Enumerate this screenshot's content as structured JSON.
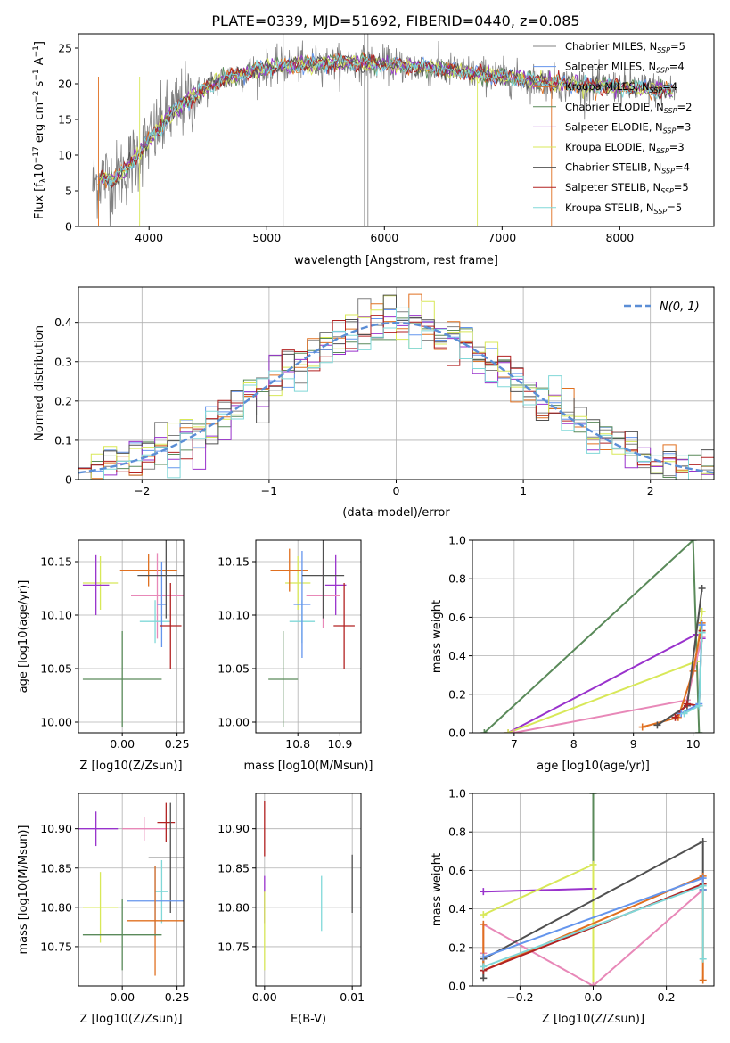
{
  "figure_title": "PLATE=0339, MJD=51692, FIBERID=0440, z=0.085",
  "colors": {
    "Chabrier MILES": "#6495ED",
    "Salpeter MILES": "#FF8C00",
    "Kroupa MILES": "#E07020",
    "Chabrier ELODIE": "#5A8A5A",
    "Salpeter ELODIE": "#9932CC",
    "Kroupa ELODIE": "#D8E858",
    "Chabrier STELIB": "#505050",
    "Salpeter STELIB": "#B22222",
    "Kroupa STELIB": "#80D8D8",
    "data": "#808080",
    "pink": "#E888B8",
    "normal": "#5B8ED6"
  },
  "chart_data": [
    {
      "id": "spectrum",
      "type": "line",
      "title": "PLATE=0339, MJD=51692, FIBERID=0440, z=0.085",
      "xlabel": "wavelength [Angstrom, rest frame]",
      "ylabel": "Flux [f_λ10^-17 erg cm^-2 s^-1 A^-1]",
      "xlim": [
        3400,
        8800
      ],
      "ylim": [
        0,
        27
      ],
      "xticks": [
        4000,
        5000,
        6000,
        7000,
        8000
      ],
      "yticks": [
        0,
        5,
        10,
        15,
        20,
        25
      ],
      "grid": false,
      "legend_position": "right",
      "legend": [
        {
          "name": "Chabrier MILES",
          "nssp": "5",
          "color": "#808080"
        },
        {
          "name": "Salpeter MILES",
          "nssp": "4",
          "color": "#6495ED"
        },
        {
          "name": "Kroupa MILES",
          "nssp": "4",
          "color": "#E07020"
        },
        {
          "name": "Chabrier ELODIE",
          "nssp": "2",
          "color": "#5A8A5A"
        },
        {
          "name": "Salpeter ELODIE",
          "nssp": "3",
          "color": "#9932CC"
        },
        {
          "name": "Kroupa ELODIE",
          "nssp": "3",
          "color": "#D8E858"
        },
        {
          "name": "Chabrier STELIB",
          "nssp": "4",
          "color": "#505050"
        },
        {
          "name": "Salpeter STELIB",
          "nssp": "5",
          "color": "#B22222"
        },
        {
          "name": "Kroupa STELIB",
          "nssp": "5",
          "color": "#80D8D8"
        }
      ],
      "continuum": {
        "x": [
          3500,
          3600,
          3700,
          3800,
          3900,
          4000,
          4100,
          4200,
          4300,
          4400,
          4500,
          4600,
          4800,
          5000,
          5200,
          5500,
          6000,
          6500,
          7000,
          7500,
          8000,
          8500
        ],
        "y": [
          5.5,
          7,
          6.5,
          8,
          10,
          12,
          14,
          16,
          17.5,
          18.5,
          19.5,
          20.5,
          21.5,
          22.2,
          22.6,
          23,
          22.8,
          22,
          21,
          20,
          19.5,
          19
        ]
      }
    },
    {
      "id": "residual-hist",
      "type": "line",
      "xlabel": "(data-model)/error",
      "ylabel": "Normed distribution",
      "xlim": [
        -2.5,
        2.5
      ],
      "ylim": [
        0,
        0.49
      ],
      "xticks": [
        -2,
        -1,
        0,
        1,
        2
      ],
      "yticks": [
        0.0,
        0.1,
        0.2,
        0.3,
        0.4
      ],
      "grid": true,
      "legend": "N(0,1)",
      "legend_position": "top-right"
    },
    {
      "id": "age-vs-Z",
      "type": "scatter",
      "xlabel": "Z [log10(Z/Zsun)]",
      "ylabel": "age [log10(age/yr)]",
      "xlim": [
        -0.2,
        0.28
      ],
      "ylim": [
        9.99,
        10.17
      ],
      "xticks": [
        0.0,
        0.25
      ],
      "xticklabels": [
        "0.00",
        "0.25"
      ],
      "yticks": [
        10.0,
        10.05,
        10.1,
        10.15
      ],
      "yticklabels": [
        "10.00",
        "10.05",
        "10.10",
        "10.15"
      ],
      "grid": true,
      "points": [
        {
          "x": 0.0,
          "y": 10.04,
          "xerr": 0.18,
          "yerr": 0.045,
          "color": "#5A8A5A"
        },
        {
          "x": -0.1,
          "y": 10.13,
          "xerr": 0.08,
          "yerr": 0.025,
          "color": "#D8E858"
        },
        {
          "x": -0.12,
          "y": 10.128,
          "xerr": 0.06,
          "yerr": 0.028,
          "color": "#9932CC"
        },
        {
          "x": 0.12,
          "y": 10.142,
          "xerr": 0.13,
          "yerr": 0.015,
          "color": "#E07020"
        },
        {
          "x": 0.16,
          "y": 10.118,
          "xerr": 0.12,
          "yerr": 0.04,
          "color": "#E888B8"
        },
        {
          "x": 0.15,
          "y": 10.094,
          "xerr": 0.07,
          "yerr": 0.02,
          "color": "#80D8D8"
        },
        {
          "x": 0.18,
          "y": 10.11,
          "xerr": 0.02,
          "yerr": 0.04,
          "color": "#6495ED"
        },
        {
          "x": 0.2,
          "y": 10.137,
          "xerr": 0.13,
          "yerr": 0.04,
          "color": "#505050"
        },
        {
          "x": 0.22,
          "y": 10.09,
          "xerr": 0.05,
          "yerr": 0.04,
          "color": "#B22222"
        }
      ]
    },
    {
      "id": "age-vs-mass",
      "type": "scatter",
      "xlabel": "mass [log10(M/Msun)]",
      "ylabel": "",
      "xlim": [
        10.7,
        10.95
      ],
      "ylim": [
        9.99,
        10.17
      ],
      "xticks": [
        10.8,
        10.9
      ],
      "xticklabels": [
        "10.8",
        "10.9"
      ],
      "yticks": [
        10.0,
        10.05,
        10.1,
        10.15
      ],
      "yticklabels": [
        "10.00",
        "10.05",
        "10.10",
        "10.15"
      ],
      "grid": true,
      "points": [
        {
          "x": 10.765,
          "y": 10.04,
          "xerr": 0.035,
          "yerr": 0.045,
          "color": "#5A8A5A"
        },
        {
          "x": 10.8,
          "y": 10.13,
          "xerr": 0.03,
          "yerr": 0.025,
          "color": "#D8E858"
        },
        {
          "x": 10.89,
          "y": 10.128,
          "xerr": 0.025,
          "yerr": 0.028,
          "color": "#9932CC"
        },
        {
          "x": 10.78,
          "y": 10.142,
          "xerr": 0.045,
          "yerr": 0.02,
          "color": "#E07020"
        },
        {
          "x": 10.86,
          "y": 10.118,
          "xerr": 0.04,
          "yerr": 0.03,
          "color": "#E888B8"
        },
        {
          "x": 10.81,
          "y": 10.094,
          "xerr": 0.03,
          "yerr": 0.02,
          "color": "#80D8D8"
        },
        {
          "x": 10.81,
          "y": 10.11,
          "xerr": 0.02,
          "yerr": 0.05,
          "color": "#6495ED"
        },
        {
          "x": 10.86,
          "y": 10.137,
          "xerr": 0.05,
          "yerr": 0.04,
          "color": "#505050"
        },
        {
          "x": 10.91,
          "y": 10.09,
          "xerr": 0.025,
          "yerr": 0.04,
          "color": "#B22222"
        }
      ]
    },
    {
      "id": "weight-vs-age",
      "type": "line",
      "xlabel": "age [log10(age/yr)]",
      "ylabel": "mass weight",
      "xlim": [
        6.3,
        10.35
      ],
      "ylim": [
        0.0,
        1.0
      ],
      "xticks": [
        7,
        8,
        9,
        10
      ],
      "yticks": [
        0.0,
        0.2,
        0.4,
        0.6,
        0.8,
        1.0
      ],
      "yticklabels": [
        "0.0",
        "0.2",
        "0.4",
        "0.6",
        "0.8",
        "1.0"
      ],
      "grid": true,
      "series": [
        {
          "color": "#5A8A5A",
          "x": [
            6.5,
            10.0,
            10.1
          ],
          "y": [
            0.0,
            1.0,
            0.0
          ]
        },
        {
          "color": "#9932CC",
          "x": [
            6.9,
            10.05,
            10.15
          ],
          "y": [
            0.0,
            0.51,
            0.49
          ]
        },
        {
          "color": "#D8E858",
          "x": [
            6.9,
            10.05,
            10.15
          ],
          "y": [
            0.0,
            0.37,
            0.63
          ]
        },
        {
          "color": "#E888B8",
          "x": [
            7.0,
            9.9,
            10.15
          ],
          "y": [
            0.0,
            0.17,
            0.5
          ]
        },
        {
          "color": "#E07020",
          "x": [
            9.15,
            9.75,
            10.0,
            10.15
          ],
          "y": [
            0.03,
            0.08,
            0.32,
            0.57
          ]
        },
        {
          "color": "#505050",
          "x": [
            9.4,
            9.9,
            10.15
          ],
          "y": [
            0.04,
            0.14,
            0.75
          ]
        },
        {
          "color": "#B22222",
          "x": [
            9.7,
            9.9,
            10.1,
            10.15
          ],
          "y": [
            0.08,
            0.15,
            0.14,
            0.53
          ]
        },
        {
          "color": "#6495ED",
          "x": [
            9.8,
            10.1,
            10.15
          ],
          "y": [
            0.1,
            0.15,
            0.56
          ]
        },
        {
          "color": "#80D8D8",
          "x": [
            9.85,
            10.1,
            10.15
          ],
          "y": [
            0.1,
            0.14,
            0.52
          ]
        }
      ]
    },
    {
      "id": "mass-vs-Z",
      "type": "scatter",
      "xlabel": "Z [log10(Z/Zsun)]",
      "ylabel": "mass [log10(M/Msun)]",
      "xlim": [
        -0.2,
        0.28
      ],
      "ylim": [
        10.7,
        10.945
      ],
      "xticks": [
        0.0,
        0.25
      ],
      "xticklabels": [
        "0.00",
        "0.25"
      ],
      "yticks": [
        10.75,
        10.8,
        10.85,
        10.9
      ],
      "yticklabels": [
        "10.75",
        "10.80",
        "10.85",
        "10.90"
      ],
      "grid": true,
      "points": [
        {
          "x": -0.12,
          "y": 10.9,
          "xerr": 0.1,
          "yerr": 0.022,
          "color": "#9932CC"
        },
        {
          "x": 0.1,
          "y": 10.9,
          "xerr": 0.1,
          "yerr": 0.015,
          "color": "#E888B8"
        },
        {
          "x": 0.2,
          "y": 10.908,
          "xerr": 0.04,
          "yerr": 0.025,
          "color": "#B22222"
        },
        {
          "x": 0.22,
          "y": 10.863,
          "xerr": 0.1,
          "yerr": 0.07,
          "color": "#505050"
        },
        {
          "x": 0.18,
          "y": 10.82,
          "xerr": 0.03,
          "yerr": 0.04,
          "color": "#80D8D8"
        },
        {
          "x": 0.15,
          "y": 10.808,
          "xerr": 0.13,
          "yerr": 0.045,
          "color": "#6495ED"
        },
        {
          "x": 0.15,
          "y": 10.783,
          "xerr": 0.13,
          "yerr": 0.07,
          "color": "#E07020"
        },
        {
          "x": -0.1,
          "y": 10.8,
          "xerr": 0.08,
          "yerr": 0.045,
          "color": "#D8E858"
        },
        {
          "x": 0.0,
          "y": 10.765,
          "xerr": 0.18,
          "yerr": 0.045,
          "color": "#5A8A5A"
        }
      ]
    },
    {
      "id": "mass-vs-ebv",
      "type": "scatter",
      "xlabel": "E(B-V)",
      "ylabel": "",
      "xlim": [
        -0.001,
        0.011
      ],
      "ylim": [
        10.7,
        10.945
      ],
      "xticks": [
        0.0,
        0.01
      ],
      "xticklabels": [
        "0.00",
        "0.01"
      ],
      "yticks": [
        10.75,
        10.8,
        10.85,
        10.9
      ],
      "yticklabels": [
        "10.75",
        "10.80",
        "10.85",
        "10.90"
      ],
      "grid": true,
      "points": [
        {
          "x": 0.0,
          "y": 10.9,
          "xerr": 0,
          "yerr": 0.035,
          "color": "#B22222"
        },
        {
          "x": 0.0,
          "y": 10.81,
          "xerr": 0,
          "yerr": 0.03,
          "color": "#9932CC"
        },
        {
          "x": 0.0,
          "y": 10.77,
          "xerr": 0,
          "yerr": 0.05,
          "color": "#D8E858"
        },
        {
          "x": 0.0065,
          "y": 10.805,
          "xerr": 0,
          "yerr": 0.035,
          "color": "#80D8D8"
        },
        {
          "x": 0.01,
          "y": 10.83,
          "xerr": 0,
          "yerr": 0.037,
          "color": "#505050"
        }
      ]
    },
    {
      "id": "weight-vs-Z",
      "type": "line",
      "xlabel": "Z [log10(Z/Zsun)]",
      "ylabel": "mass weight",
      "xlim": [
        -0.33,
        0.33
      ],
      "ylim": [
        0.0,
        1.0
      ],
      "xticks": [
        -0.2,
        0.0,
        0.2
      ],
      "xticklabels": [
        "−0.2",
        "0.0",
        "0.2"
      ],
      "yticks": [
        0.0,
        0.2,
        0.4,
        0.6,
        0.8,
        1.0
      ],
      "yticklabels": [
        "0.0",
        "0.2",
        "0.4",
        "0.6",
        "0.8",
        "1.0"
      ],
      "grid": true,
      "series": [
        {
          "color": "#5A8A5A",
          "x": [
            0.0,
            0.0
          ],
          "y": [
            1.0,
            0.0
          ]
        },
        {
          "color": "#9932CC",
          "x": [
            -0.3,
            0.0
          ],
          "y": [
            0.49,
            0.505
          ]
        },
        {
          "color": "#D8E858",
          "x": [
            -0.3,
            0.0,
            0.0
          ],
          "y": [
            0.37,
            0.63,
            0.0
          ]
        },
        {
          "color": "#E888B8",
          "x": [
            -0.3,
            -0.3,
            0.0,
            0.3
          ],
          "y": [
            0.17,
            0.32,
            0.0,
            0.5
          ]
        },
        {
          "color": "#505050",
          "x": [
            -0.3,
            -0.3,
            0.3,
            0.3
          ],
          "y": [
            0.04,
            0.14,
            0.75,
            0.5
          ]
        },
        {
          "color": "#E07020",
          "x": [
            -0.3,
            -0.3,
            0.3,
            0.3
          ],
          "y": [
            0.32,
            0.08,
            0.57,
            0.03
          ]
        },
        {
          "color": "#B22222",
          "x": [
            -0.3,
            0.3
          ],
          "y": [
            0.08,
            0.53
          ]
        },
        {
          "color": "#6495ED",
          "x": [
            -0.3,
            0.3,
            0.3
          ],
          "y": [
            0.15,
            0.56,
            0.5
          ]
        },
        {
          "color": "#80D8D8",
          "x": [
            -0.3,
            0.3,
            0.3
          ],
          "y": [
            0.1,
            0.52,
            0.14
          ]
        }
      ]
    }
  ]
}
